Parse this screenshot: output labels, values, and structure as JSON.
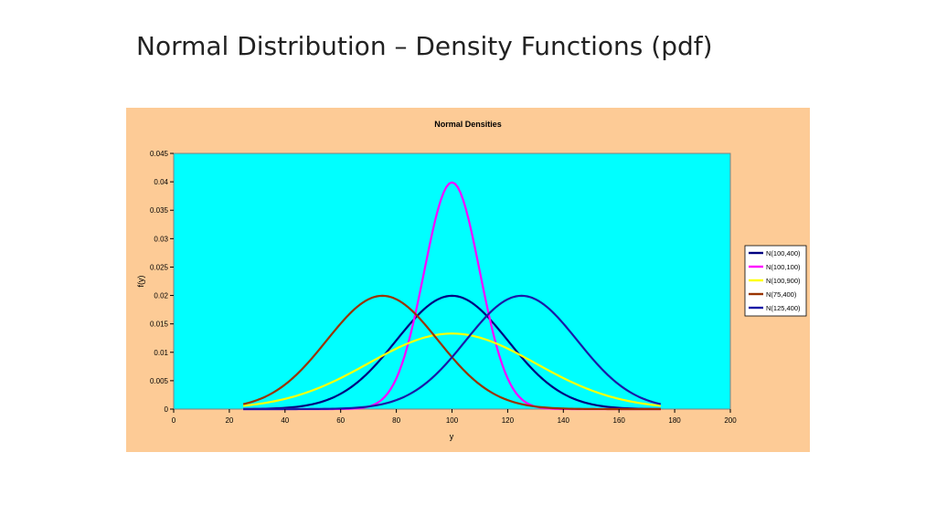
{
  "slide": {
    "title": "Normal Distribution – Density Functions (pdf)"
  },
  "colors": {
    "chart_area": "#FDCB96",
    "plot_area": "#00FFFF",
    "gridline": "#808080"
  },
  "chart_data": {
    "type": "line",
    "title": "Normal Densities",
    "xlabel": "y",
    "ylabel": "f(y)",
    "xlim": [
      0,
      200
    ],
    "ylim": [
      0,
      0.045
    ],
    "x_ticks": [
      "0",
      "20",
      "40",
      "60",
      "80",
      "100",
      "120",
      "140",
      "160",
      "180",
      "200"
    ],
    "y_ticks": [
      "0",
      "0.005",
      "0.01",
      "0.015",
      "0.02",
      "0.025",
      "0.03",
      "0.035",
      "0.04",
      "0.045"
    ],
    "grid": false,
    "legend_position": "right",
    "x_range_plotted": [
      25,
      175
    ],
    "series": [
      {
        "name": "N(100,400)",
        "mean": 100,
        "variance": 400,
        "color": "#000080",
        "peak": 0.0199
      },
      {
        "name": "N(100,100)",
        "mean": 100,
        "variance": 100,
        "color": "#FF00FF",
        "peak": 0.0399
      },
      {
        "name": "N(100,900)",
        "mean": 100,
        "variance": 900,
        "color": "#FFFF00",
        "peak": 0.0133
      },
      {
        "name": "N(75,400)",
        "mean": 75,
        "variance": 400,
        "color": "#993300",
        "peak": 0.0199
      },
      {
        "name": "N(125,400)",
        "mean": 125,
        "variance": 400,
        "color": "#1A1AA6",
        "peak": 0.0199
      }
    ]
  }
}
